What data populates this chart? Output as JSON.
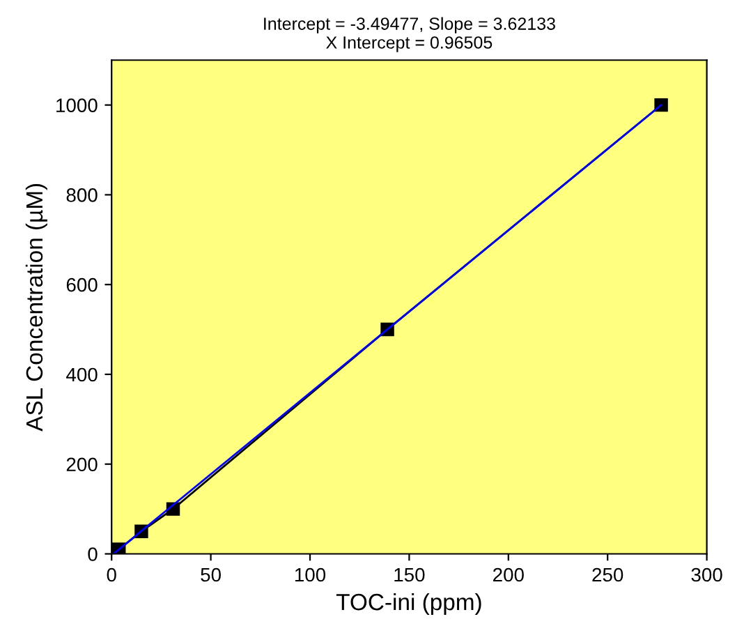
{
  "chart_data": {
    "type": "line",
    "title": "Intercept = -3.49477, Slope = 3.62133\nX Intercept = 0.96505",
    "xlabel": "TOC-ini (ppm)",
    "ylabel": "ASL Concentration (µM)",
    "series": [
      {
        "type": "line",
        "color": "#000000",
        "marker": "square",
        "x": [
          3.7,
          15,
          31,
          139,
          277
        ],
        "values": [
          10,
          50,
          100,
          500,
          1000
        ]
      },
      {
        "type": "line",
        "color": "#0000ff",
        "marker": "none",
        "x": [
          0.965,
          277
        ],
        "values": [
          0,
          1000
        ]
      }
    ],
    "xlim": [
      0,
      300
    ],
    "xticks": [
      0,
      50,
      100,
      150,
      200,
      250,
      300
    ],
    "ylim": [
      0,
      1100
    ],
    "yticks": [
      0,
      200,
      400,
      600,
      800,
      1000
    ],
    "grid": false,
    "legend": false
  }
}
